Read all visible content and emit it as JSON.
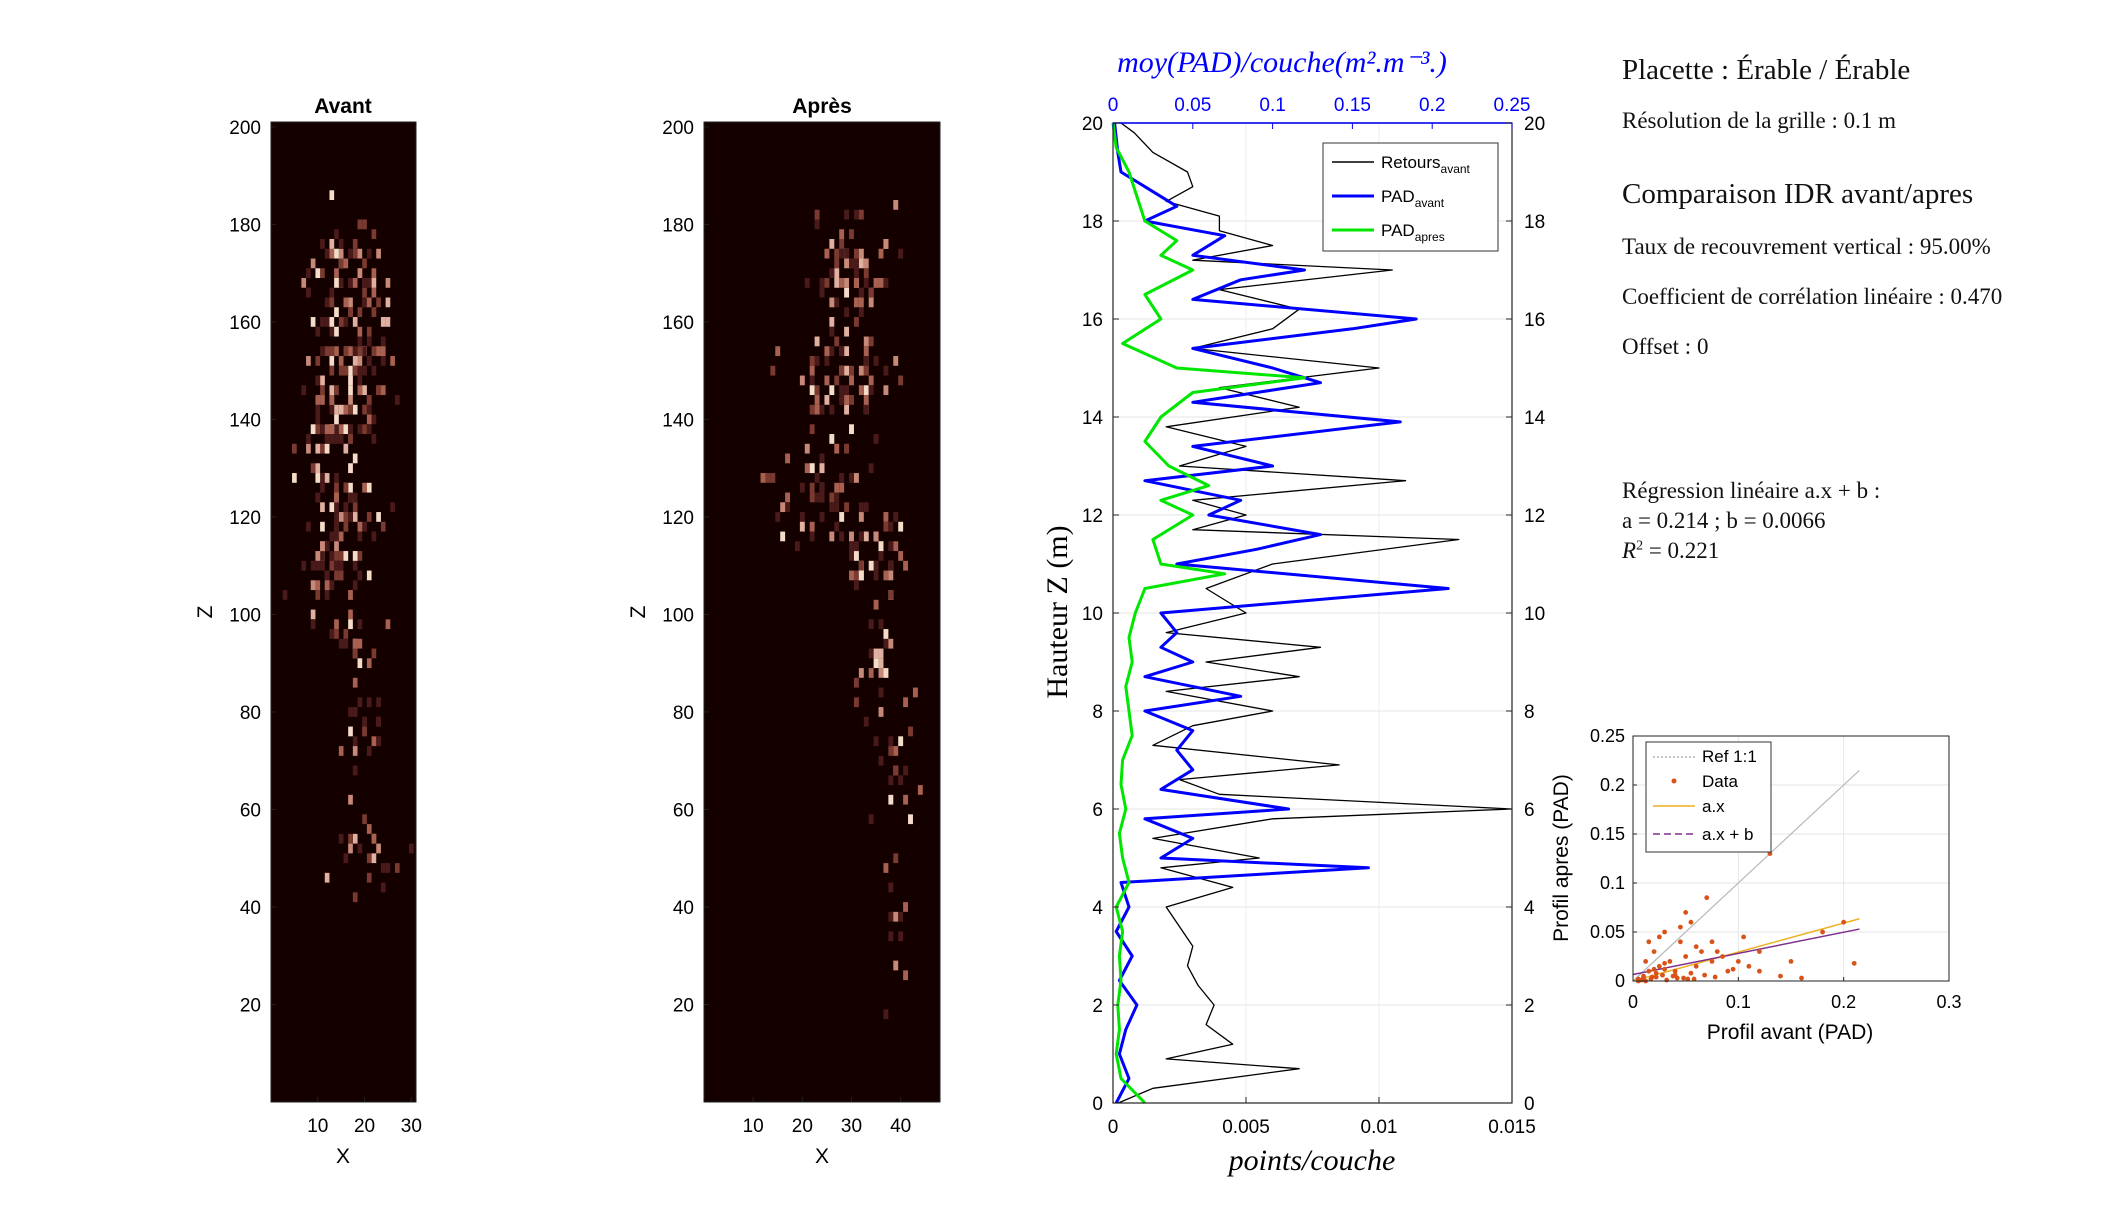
{
  "figure": {
    "heatmap_before_title": "Avant",
    "heatmap_after_title": "Après",
    "heatmap_xlabel": "X",
    "heatmap_ylabel": "Z",
    "heatmap_before_x_ticks": [
      "10",
      "20",
      "30"
    ],
    "heatmap_after_x_ticks": [
      "10",
      "20",
      "30",
      "40"
    ],
    "heatmap_y_ticks": [
      "20",
      "40",
      "60",
      "80",
      "100",
      "120",
      "140",
      "160",
      "180",
      "200"
    ]
  },
  "profile": {
    "top_axis_label": "moy(PAD)/couche(m².m⁻³.)",
    "bottom_axis_label": "points/couche",
    "left_axis_label": "Hauteur Z (m)",
    "top_ticks": [
      "0",
      "0.05",
      "0.1",
      "0.15",
      "0.2",
      "0.25"
    ],
    "bottom_ticks": [
      "0",
      "0.005",
      "0.01",
      "0.015"
    ],
    "y_ticks": [
      "0",
      "2",
      "4",
      "6",
      "8",
      "10",
      "12",
      "14",
      "16",
      "18",
      "20"
    ],
    "legend": [
      {
        "name": "Retours",
        "sub": "avant",
        "color": "#000000"
      },
      {
        "name": "PAD",
        "sub": "avant",
        "color": "#0000ff"
      },
      {
        "name": "PAD",
        "sub": "apres",
        "color": "#00e600"
      }
    ]
  },
  "info": {
    "title": "Placette : Érable / Érable",
    "resolution": "Résolution de la grille : 0.1 m",
    "comparison_title": "Comparaison IDR avant/apres",
    "overlap": "Taux de recouvrement vertical : 95.00%",
    "correlation": "Coefficient de corrélation linéaire : 0.470",
    "offset": "Offset : 0",
    "regression_title": "Régression linéaire a.x + b :",
    "regression_params": "a = 0.214 ; b = 0.0066",
    "r2_label": "R",
    "r2_exp": "2",
    "r2_value": " = 0.221"
  },
  "scatter": {
    "xlabel": "Profil avant (PAD)",
    "ylabel": "Profil apres (PAD)",
    "x_ticks": [
      "0",
      "0.1",
      "0.2",
      "0.3"
    ],
    "y_ticks": [
      "0",
      "0.05",
      "0.1",
      "0.15",
      "0.2",
      "0.25"
    ],
    "legend": [
      "Ref 1:1",
      "Data",
      "a.x",
      "a.x + b"
    ]
  },
  "colors": {
    "heatmap_bg": "#150000",
    "retours": "#000000",
    "pad_avant": "#0000ff",
    "pad_apres": "#00e600",
    "data_points": "#d95319",
    "line_ax": "#edb120",
    "line_axb": "#7e2f8e",
    "ref_line": "#b8b8b8"
  },
  "chart_data": [
    {
      "type": "heatmap",
      "title": "Avant",
      "xlabel": "X",
      "ylabel": "Z",
      "xlim": [
        0,
        31
      ],
      "ylim": [
        0,
        201
      ],
      "description_values": "sparse point density; crown between Z 90 and 190, trunk below Z 90 at X about 20",
      "clusters": [
        {
          "x": 16,
          "z": 168,
          "spread_x": 8,
          "spread_z": 12,
          "n": 70
        },
        {
          "x": 18,
          "z": 152,
          "spread_x": 9,
          "spread_z": 10,
          "n": 70
        },
        {
          "x": 14,
          "z": 138,
          "spread_x": 8,
          "spread_z": 8,
          "n": 60
        },
        {
          "x": 16,
          "z": 120,
          "spread_x": 8,
          "spread_z": 8,
          "n": 50
        },
        {
          "x": 13,
          "z": 108,
          "spread_x": 7,
          "spread_z": 8,
          "n": 50
        },
        {
          "x": 18,
          "z": 95,
          "spread_x": 5,
          "spread_z": 5,
          "n": 18
        },
        {
          "x": 20,
          "z": 75,
          "spread_x": 4,
          "spread_z": 10,
          "n": 25
        },
        {
          "x": 20,
          "z": 50,
          "spread_x": 6,
          "spread_z": 6,
          "n": 22
        }
      ]
    },
    {
      "type": "heatmap",
      "title": "Après",
      "xlabel": "X",
      "ylabel": "Z",
      "xlim": [
        0,
        48
      ],
      "ylim": [
        0,
        201
      ],
      "clusters": [
        {
          "x": 30,
          "z": 170,
          "spread_x": 8,
          "spread_z": 12,
          "n": 70
        },
        {
          "x": 28,
          "z": 148,
          "spread_x": 9,
          "spread_z": 8,
          "n": 65
        },
        {
          "x": 22,
          "z": 125,
          "spread_x": 10,
          "spread_z": 8,
          "n": 55
        },
        {
          "x": 34,
          "z": 110,
          "spread_x": 7,
          "spread_z": 8,
          "n": 40
        },
        {
          "x": 36,
          "z": 92,
          "spread_x": 4,
          "spread_z": 8,
          "n": 20
        },
        {
          "x": 38,
          "z": 70,
          "spread_x": 5,
          "spread_z": 12,
          "n": 22
        },
        {
          "x": 39,
          "z": 35,
          "spread_x": 2,
          "spread_z": 15,
          "n": 12
        }
      ]
    },
    {
      "type": "line",
      "title": "",
      "xlabel_bottom": "points/couche",
      "xlabel_top": "moy(PAD)/couche(m².m⁻³.)",
      "ylabel": "Hauteur Z (m)",
      "ylim": [
        0,
        20
      ],
      "xlim_bottom": [
        0,
        0.015
      ],
      "xlim_top": [
        0,
        0.25
      ],
      "series": [
        {
          "name": "Retours avant",
          "axis": "bottom",
          "z": [
            0.0,
            0.3,
            0.7,
            0.9,
            1.2,
            1.6,
            2.0,
            2.4,
            2.8,
            3.2,
            3.6,
            4.0,
            4.4,
            4.8,
            5.0,
            5.4,
            5.8,
            6.0,
            6.3,
            6.6,
            6.9,
            7.3,
            7.7,
            8.0,
            8.4,
            8.7,
            9.0,
            9.3,
            9.6,
            10.0,
            10.5,
            11.0,
            11.5,
            11.7,
            12.0,
            12.3,
            12.7,
            13.0,
            13.4,
            13.8,
            14.2,
            14.6,
            15.0,
            15.4,
            15.8,
            16.2,
            16.6,
            17.0,
            17.2,
            17.5,
            17.8,
            18.1,
            18.4,
            18.7,
            19.0,
            19.4,
            19.8,
            20.0
          ],
          "values": [
            0.0002,
            0.0015,
            0.007,
            0.002,
            0.0045,
            0.0035,
            0.0038,
            0.0032,
            0.0028,
            0.003,
            0.0025,
            0.002,
            0.0045,
            0.0018,
            0.0055,
            0.0015,
            0.006,
            0.015,
            0.004,
            0.0025,
            0.0085,
            0.0015,
            0.003,
            0.006,
            0.002,
            0.007,
            0.0035,
            0.0078,
            0.002,
            0.005,
            0.0035,
            0.006,
            0.013,
            0.003,
            0.005,
            0.003,
            0.011,
            0.0025,
            0.005,
            0.002,
            0.007,
            0.004,
            0.01,
            0.003,
            0.006,
            0.007,
            0.004,
            0.0105,
            0.003,
            0.006,
            0.004,
            0.004,
            0.002,
            0.003,
            0.0028,
            0.0015,
            0.0008,
            0.0003
          ]
        },
        {
          "name": "PAD avant",
          "axis": "top",
          "z": [
            0.0,
            0.5,
            1.0,
            1.5,
            2.0,
            2.5,
            3.0,
            3.5,
            4.0,
            4.5,
            4.8,
            5.0,
            5.4,
            5.8,
            6.0,
            6.4,
            6.8,
            7.2,
            7.6,
            8.0,
            8.3,
            8.7,
            9.0,
            9.3,
            9.6,
            10.0,
            10.5,
            11.0,
            11.3,
            11.6,
            12.0,
            12.3,
            12.7,
            13.0,
            13.4,
            13.9,
            14.3,
            14.7,
            15.0,
            15.4,
            15.8,
            16.0,
            16.4,
            16.8,
            17.0,
            17.3,
            17.7,
            18.0,
            18.3,
            18.7,
            19.0,
            19.4,
            20.0
          ],
          "values": [
            0.002,
            0.01,
            0.004,
            0.008,
            0.015,
            0.004,
            0.012,
            0.002,
            0.01,
            0.005,
            0.16,
            0.03,
            0.05,
            0.02,
            0.11,
            0.03,
            0.05,
            0.04,
            0.05,
            0.02,
            0.08,
            0.02,
            0.05,
            0.03,
            0.04,
            0.03,
            0.21,
            0.04,
            0.09,
            0.13,
            0.06,
            0.08,
            0.02,
            0.1,
            0.05,
            0.18,
            0.05,
            0.13,
            0.1,
            0.05,
            0.15,
            0.19,
            0.05,
            0.08,
            0.12,
            0.05,
            0.07,
            0.02,
            0.04,
            0.02,
            0.005,
            0.003,
            0.001
          ]
        },
        {
          "name": "PAD apres",
          "axis": "top",
          "z": [
            0.0,
            0.5,
            1.0,
            1.5,
            2.0,
            2.5,
            3.0,
            3.5,
            4.0,
            4.5,
            5.0,
            5.5,
            6.0,
            6.5,
            7.0,
            7.5,
            8.0,
            8.5,
            9.0,
            9.5,
            10.0,
            10.5,
            10.8,
            11.0,
            11.5,
            12.0,
            12.3,
            12.6,
            13.0,
            13.5,
            14.0,
            14.5,
            14.8,
            15.0,
            15.5,
            16.0,
            16.5,
            17.0,
            17.3,
            17.6,
            18.0,
            18.5,
            19.0,
            19.5,
            20.0
          ],
          "values": [
            0.02,
            0.005,
            0.002,
            0.004,
            0.003,
            0.005,
            0.004,
            0.006,
            0.002,
            0.01,
            0.006,
            0.004,
            0.008,
            0.005,
            0.006,
            0.012,
            0.01,
            0.008,
            0.012,
            0.01,
            0.014,
            0.02,
            0.07,
            0.03,
            0.025,
            0.05,
            0.03,
            0.06,
            0.035,
            0.02,
            0.03,
            0.05,
            0.12,
            0.04,
            0.006,
            0.03,
            0.02,
            0.05,
            0.03,
            0.04,
            0.02,
            0.015,
            0.01,
            0.002,
            0.0
          ]
        }
      ]
    },
    {
      "type": "scatter",
      "xlabel": "Profil avant (PAD)",
      "ylabel": "Profil apres (PAD)",
      "xlim": [
        0,
        0.3
      ],
      "ylim": [
        0,
        0.25
      ],
      "points_x": [
        0.005,
        0.01,
        0.012,
        0.015,
        0.02,
        0.022,
        0.025,
        0.03,
        0.035,
        0.04,
        0.045,
        0.05,
        0.055,
        0.06,
        0.065,
        0.07,
        0.075,
        0.08,
        0.09,
        0.1,
        0.11,
        0.12,
        0.13,
        0.14,
        0.15,
        0.16,
        0.18,
        0.2,
        0.21,
        0.015,
        0.025,
        0.03,
        0.045,
        0.05,
        0.055,
        0.06,
        0.075,
        0.085,
        0.095,
        0.105,
        0.12,
        0.005,
        0.008,
        0.01,
        0.018,
        0.028,
        0.038,
        0.048,
        0.058,
        0.068,
        0.078,
        0.02,
        0.03,
        0.04,
        0.012,
        0.017,
        0.022,
        0.032,
        0.042,
        0.052
      ],
      "points_y": [
        0.002,
        0.005,
        0.02,
        0.01,
        0.03,
        0.008,
        0.015,
        0.05,
        0.02,
        0.01,
        0.04,
        0.025,
        0.06,
        0.015,
        0.03,
        0.085,
        0.02,
        0.03,
        0.01,
        0.02,
        0.015,
        0.03,
        0.13,
        0.005,
        0.02,
        0.003,
        0.05,
        0.06,
        0.018,
        0.04,
        0.045,
        0.012,
        0.055,
        0.07,
        0.008,
        0.035,
        0.04,
        0.025,
        0.012,
        0.045,
        0.01,
        0.0,
        0.001,
        0.003,
        0.004,
        0.006,
        0.005,
        0.003,
        0.002,
        0.006,
        0.004,
        0.012,
        0.018,
        0.006,
        0.0,
        0.002,
        0.004,
        0.001,
        0.003,
        0.002
      ],
      "lines": [
        {
          "name": "Ref 1:1",
          "x": [
            0,
            0.215
          ],
          "y": [
            0,
            0.215
          ]
        },
        {
          "name": "a.x",
          "x": [
            0,
            0.215
          ],
          "y": [
            0,
            0.0635
          ]
        },
        {
          "name": "a.x + b",
          "x": [
            0,
            0.215
          ],
          "y": [
            0.0066,
            0.053
          ]
        }
      ],
      "a": 0.214,
      "b": 0.0066,
      "r2": 0.221
    }
  ]
}
